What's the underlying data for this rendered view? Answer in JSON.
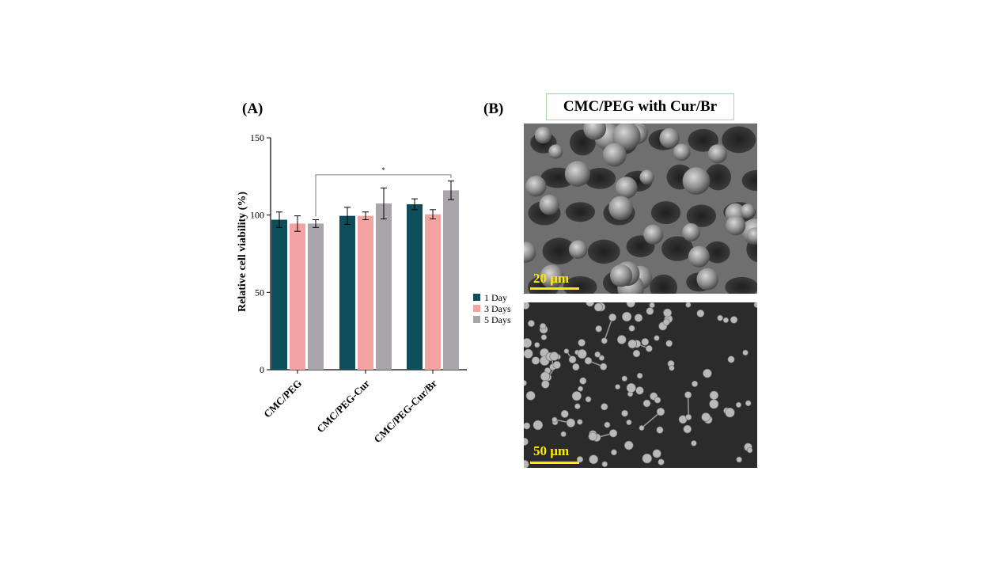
{
  "panel_a_label": "(A)",
  "panel_b_label": "(B)",
  "sem_panel": {
    "title": "CMC/PEG with Cur/Br",
    "images": [
      {
        "scale_label": "20 µm",
        "content": "SEM micrograph"
      },
      {
        "scale_label": "50 µm",
        "content": "SEM micrograph"
      }
    ]
  },
  "chart_data": {
    "type": "bar",
    "title": "",
    "xlabel": "",
    "ylabel": "Relative cell viability (%)",
    "ylim": [
      0,
      150
    ],
    "yticks": [
      0,
      50,
      100,
      150
    ],
    "categories": [
      "CMC/PEG",
      "CMC/PEG-Cur",
      "CMC/PEG-Cur/Br"
    ],
    "series": [
      {
        "name": "1 Day",
        "color": "#0e4d5a",
        "values": [
          97,
          99.5,
          107
        ],
        "errors": [
          5,
          5.5,
          3.5
        ]
      },
      {
        "name": "3 Days",
        "color": "#f4a3a3",
        "values": [
          94.5,
          99.5,
          100.5
        ],
        "errors": [
          5,
          2.5,
          3
        ]
      },
      {
        "name": "5 Days",
        "color": "#a9a6ab",
        "values": [
          94.5,
          107.5,
          116
        ],
        "errors": [
          2.5,
          10,
          6
        ]
      }
    ],
    "significance": {
      "from_category": 0,
      "from_series": 2,
      "to_category": 2,
      "to_series": 2,
      "label": "*"
    },
    "legend_position": "right",
    "grid": false
  }
}
